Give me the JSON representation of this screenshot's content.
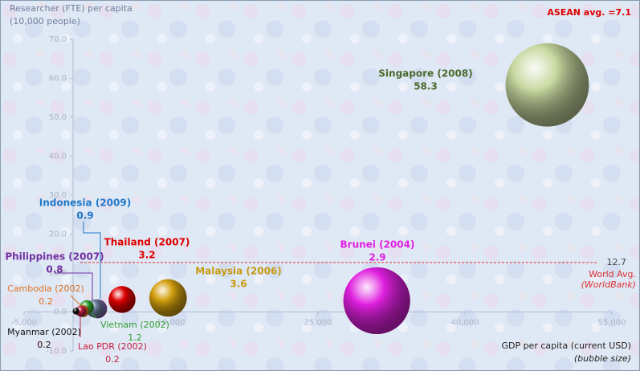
{
  "chart_data": {
    "type": "bubble",
    "annotation": "ASEAN avg. =7.1",
    "y_label": "Researcher (FTE) per capita",
    "y_sublabel": "(10,000 people)",
    "x_label": "GDP per capita (current USD)",
    "x_sublabel": "(bubble size)",
    "xlim": [
      -5000,
      55000
    ],
    "xticks": [
      {
        "value": -5000,
        "label": "-5,000"
      },
      {
        "value": 10000,
        "label": "10,000"
      },
      {
        "value": 25000,
        "label": "25,000"
      },
      {
        "value": 40000,
        "label": "40,000"
      },
      {
        "value": 55000,
        "label": "55,000"
      }
    ],
    "ylim": [
      -10,
      70
    ],
    "yticks": [
      {
        "value": -10,
        "label": "-10.0"
      },
      {
        "value": 0,
        "label": "0.0"
      },
      {
        "value": 10,
        "label": "10.0"
      },
      {
        "value": 20,
        "label": "20.0"
      },
      {
        "value": 30,
        "label": "30.0"
      },
      {
        "value": 40,
        "label": "40.0"
      },
      {
        "value": 50,
        "label": "50.0"
      },
      {
        "value": 60,
        "label": "60.0"
      },
      {
        "value": 70,
        "label": "70.0"
      }
    ],
    "reference_line": {
      "value": 12.7,
      "label": "World Avg.",
      "sublabel": "(WorldBank)",
      "color": "#e03030"
    },
    "series": [
      {
        "name": "Singapore (2008)",
        "color": "#c8d8a0",
        "label_color": "#4a6a2a",
        "x": [
          48400
        ],
        "values": [
          58.3
        ],
        "sizes": [
          48400
        ]
      },
      {
        "name": "Brunei (2004)",
        "color": "#e020e0",
        "label_color": "#e020e0",
        "x": [
          31000
        ],
        "values": [
          2.9
        ],
        "sizes": [
          31000
        ]
      },
      {
        "name": "Malaysia (2006)",
        "color": "#d4a010",
        "label_color": "#c89a10",
        "x": [
          9700
        ],
        "values": [
          3.6
        ],
        "sizes": [
          9700
        ]
      },
      {
        "name": "Thailand (2007)",
        "color": "#e00000",
        "label_color": "#e00000",
        "x": [
          5000
        ],
        "values": [
          3.2
        ],
        "sizes": [
          5000
        ]
      },
      {
        "name": "Philippines (2007)",
        "color": "#8060b0",
        "label_color": "#7030a0",
        "x": [
          2500
        ],
        "values": [
          0.8
        ],
        "sizes": [
          2500
        ]
      },
      {
        "name": "Indonesia (2009)",
        "color": "#7080a0",
        "label_color": "#1f78c8",
        "x": [
          2200
        ],
        "values": [
          0.9
        ],
        "sizes": [
          2200
        ]
      },
      {
        "name": "Vietnam (2002)",
        "color": "#30a030",
        "label_color": "#30a030",
        "x": [
          1400
        ],
        "values": [
          1.2
        ],
        "sizes": [
          1400
        ]
      },
      {
        "name": "Cambodia (2002)",
        "color": "#e07020",
        "label_color": "#e07020",
        "x": [
          1000
        ],
        "values": [
          0.2
        ],
        "sizes": [
          1000
        ]
      },
      {
        "name": "Lao PDR (2002)",
        "color": "#c02040",
        "label_color": "#c02040",
        "x": [
          800
        ],
        "values": [
          0.2
        ],
        "sizes": [
          800
        ]
      },
      {
        "name": "Myanmar (2002)",
        "color": "#111111",
        "label_color": "#111111",
        "x": [
          300
        ],
        "values": [
          0.2
        ],
        "sizes": [
          300
        ]
      }
    ]
  }
}
